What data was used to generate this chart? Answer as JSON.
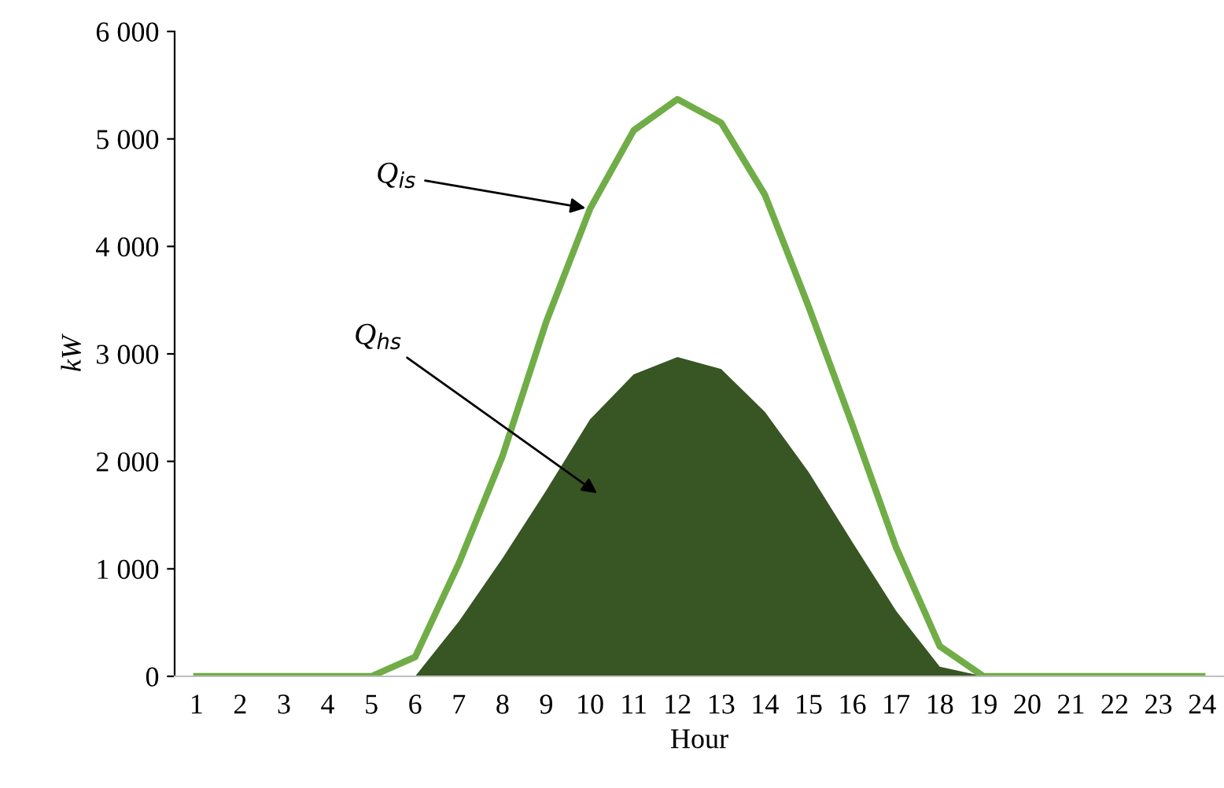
{
  "chart_data": {
    "type": "line",
    "xlabel": "Hour",
    "ylabel": "kW",
    "categories": [
      "1",
      "2",
      "3",
      "4",
      "5",
      "6",
      "7",
      "8",
      "9",
      "10",
      "11",
      "12",
      "13",
      "14",
      "15",
      "16",
      "17",
      "18",
      "19",
      "20",
      "21",
      "22",
      "23",
      "24"
    ],
    "series": [
      {
        "type": "area",
        "color": "#375623",
        "values": [
          0,
          0,
          0,
          0,
          0,
          0,
          510,
          1100,
          1730,
          2390,
          2810,
          2970,
          2860,
          2460,
          1900,
          1250,
          610,
          90,
          0,
          0,
          0,
          0,
          0,
          0
        ]
      },
      {
        "color": "#70ad47",
        "values": [
          0,
          0,
          0,
          0,
          0,
          180,
          1050,
          2050,
          3300,
          4350,
          5080,
          5370,
          5150,
          4480,
          3440,
          2340,
          1200,
          280,
          0,
          0,
          0,
          0,
          0,
          0
        ]
      }
    ],
    "ylim": [
      0,
      6000
    ],
    "yticks": [
      0,
      {
        "value": 1000,
        "label": "1 000"
      },
      {
        "value": 2000,
        "label": "2 000"
      },
      {
        "value": 3000,
        "label": "3 000"
      },
      {
        "value": 4000,
        "label": "4 000"
      },
      {
        "value": 5000,
        "label": "5 000"
      },
      {
        "value": 6000,
        "label": "6 000"
      }
    ],
    "annotations": [
      {
        "text": "Q$_{is}$",
        "x": "10",
        "y": 4350
      },
      "Q$_{hs}$"
    ],
    "grid": false,
    "legend": false
  }
}
